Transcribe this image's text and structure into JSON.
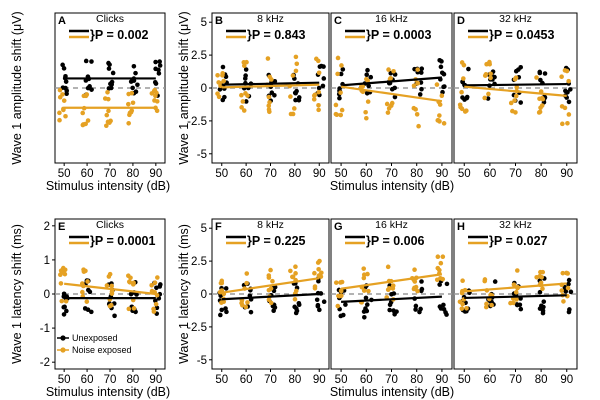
{
  "colors": {
    "unexposed": "#000000",
    "exposed": "#E5A123",
    "zero_line": "#9a9a9a"
  },
  "figure": {
    "left_ylabel_top": "Wave 1 amplitude shift (μV)",
    "left_ylabel_bottom": "Wave 1 latency shift (ms)",
    "right_ylabel_top": "Wave 1 amplitude shift (μV)",
    "right_ylabel_bottom": "Wave 1 latency shift (ms)",
    "xlabel": "Stimulus intensity (dB)",
    "legend": {
      "unexposed": "Unexposed",
      "exposed": "Noise exposed"
    }
  },
  "chart_data": [
    {
      "type": "scatter",
      "panel": "A",
      "title": "Clicks",
      "p_text": "}P = 0.002",
      "row": "top",
      "x_ticks": [
        50,
        60,
        70,
        80,
        90
      ],
      "xlim": [
        46,
        94
      ],
      "ylim": [
        -2.2,
        2.2
      ],
      "y_ticks": [],
      "unexposed_fit": [
        [
          50,
          0.28
        ],
        [
          90,
          0.28
        ]
      ],
      "exposed_fit": [
        [
          50,
          -0.58
        ],
        [
          90,
          -0.58
        ]
      ]
    },
    {
      "type": "scatter",
      "panel": "B",
      "title": "8 kHz",
      "p_text": "}P = 0.843",
      "row": "top",
      "x_ticks": [
        50,
        60,
        70,
        80,
        90
      ],
      "xlim": [
        46,
        94
      ],
      "ylim": [
        -5.7,
        5.7
      ],
      "y_ticks": [
        -5,
        -2.5,
        0,
        2.5,
        5
      ],
      "y_tick_labels": [
        "-5",
        "-2.5",
        "0",
        "2.5",
        "5"
      ],
      "unexposed_fit": [
        [
          50,
          0.25
        ],
        [
          90,
          0.4
        ]
      ],
      "exposed_fit": [
        [
          50,
          0.05
        ],
        [
          90,
          0.25
        ]
      ]
    },
    {
      "type": "scatter",
      "panel": "C",
      "title": "16 kHz",
      "p_text": "}P = 0.0003",
      "row": "top",
      "x_ticks": [
        50,
        60,
        70,
        80,
        90
      ],
      "xlim": [
        46,
        94
      ],
      "ylim": [
        -5.7,
        5.7
      ],
      "y_ticks": [],
      "unexposed_fit": [
        [
          50,
          0.2
        ],
        [
          90,
          0.8
        ]
      ],
      "exposed_fit": [
        [
          50,
          0.1
        ],
        [
          90,
          -1.0
        ]
      ]
    },
    {
      "type": "scatter",
      "panel": "D",
      "title": "32 kHz",
      "p_text": "}P = 0.0453",
      "row": "top",
      "x_ticks": [
        50,
        60,
        70,
        80,
        90
      ],
      "xlim": [
        46,
        94
      ],
      "ylim": [
        -5.7,
        5.7
      ],
      "y_ticks": [],
      "unexposed_fit": [
        [
          50,
          0.2
        ],
        [
          90,
          0.3
        ]
      ],
      "exposed_fit": [
        [
          50,
          0.1
        ],
        [
          90,
          -0.6
        ]
      ]
    },
    {
      "type": "scatter",
      "panel": "E",
      "title": "Clicks",
      "p_text": "}P = 0.0001",
      "row": "bottom",
      "x_ticks": [
        50,
        60,
        70,
        80,
        90
      ],
      "xlim": [
        46,
        94
      ],
      "ylim": [
        -2.2,
        2.2
      ],
      "y_ticks": [
        -2,
        -1,
        0,
        1,
        2
      ],
      "y_tick_labels": [
        "-2",
        "-1",
        "0",
        "1",
        "2"
      ],
      "unexposed_fit": [
        [
          50,
          -0.12
        ],
        [
          90,
          -0.12
        ]
      ],
      "exposed_fit": [
        [
          50,
          0.3
        ],
        [
          90,
          0.0
        ]
      ]
    },
    {
      "type": "scatter",
      "panel": "F",
      "title": "8 kHz",
      "p_text": "}P = 0.225",
      "row": "bottom",
      "x_ticks": [
        50,
        60,
        70,
        80,
        90
      ],
      "xlim": [
        46,
        94
      ],
      "ylim": [
        -5.7,
        5.7
      ],
      "y_ticks": [
        -5,
        -2.5,
        0,
        2.5,
        5
      ],
      "y_tick_labels": [
        "-5",
        "-2.5",
        "0",
        "2.5",
        "5"
      ],
      "unexposed_fit": [
        [
          50,
          -0.4
        ],
        [
          90,
          0.0
        ]
      ],
      "exposed_fit": [
        [
          50,
          0.1
        ],
        [
          90,
          1.2
        ]
      ]
    },
    {
      "type": "scatter",
      "panel": "G",
      "title": "16 kHz",
      "p_text": "}P = 0.006",
      "row": "bottom",
      "x_ticks": [
        50,
        60,
        70,
        80,
        90
      ],
      "xlim": [
        46,
        94
      ],
      "ylim": [
        -5.7,
        5.7
      ],
      "y_ticks": [],
      "unexposed_fit": [
        [
          50,
          -0.6
        ],
        [
          90,
          -0.2
        ]
      ],
      "exposed_fit": [
        [
          50,
          0.4
        ],
        [
          90,
          1.5
        ]
      ]
    },
    {
      "type": "scatter",
      "panel": "H",
      "title": "32 kHz",
      "p_text": "}P = 0.027",
      "row": "bottom",
      "x_ticks": [
        50,
        60,
        70,
        80,
        90
      ],
      "xlim": [
        46,
        94
      ],
      "ylim": [
        -5.7,
        5.7
      ],
      "y_ticks": [],
      "unexposed_fit": [
        [
          50,
          -0.3
        ],
        [
          90,
          -0.1
        ]
      ],
      "exposed_fit": [
        [
          50,
          0.2
        ],
        [
          90,
          0.8
        ]
      ]
    }
  ]
}
